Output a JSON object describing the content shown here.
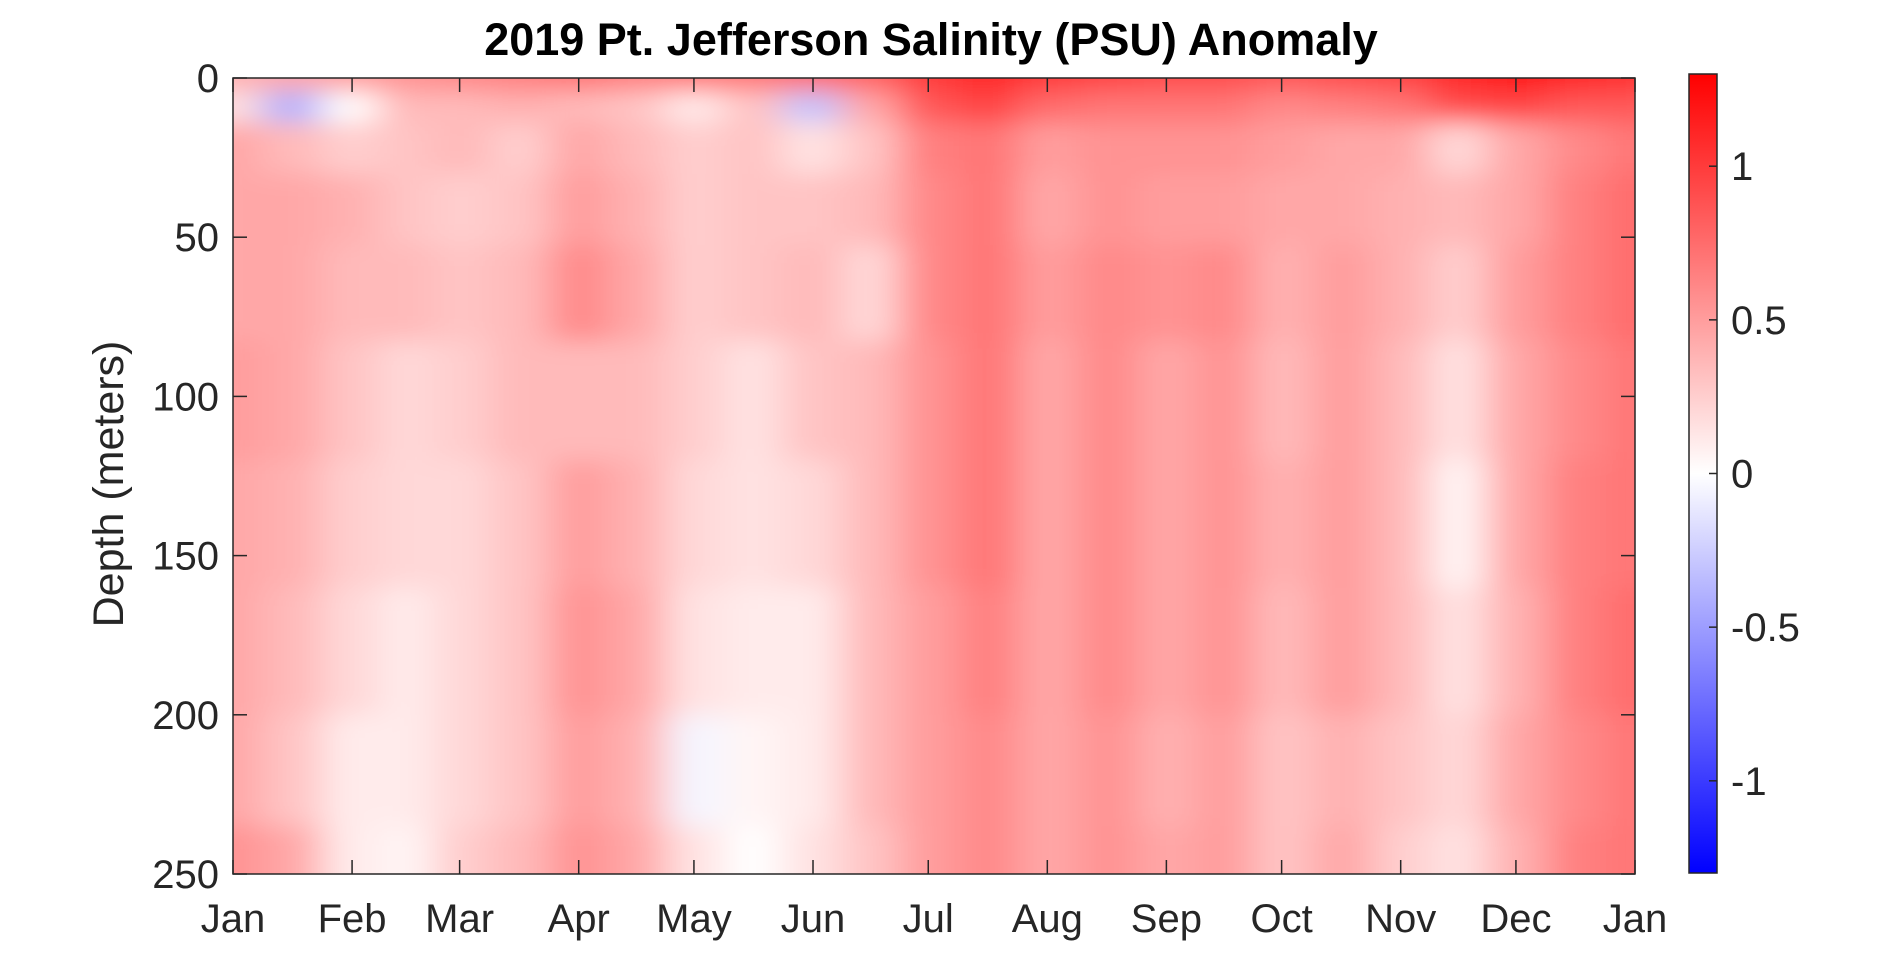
{
  "chart_data": {
    "type": "heatmap",
    "title": "2019 Pt. Jefferson Salinity (PSU) Anomaly",
    "xlabel": "",
    "ylabel": "Depth (meters)",
    "x_tick_labels": [
      "Jan",
      "Feb",
      "Mar",
      "Apr",
      "May",
      "Jun",
      "Jul",
      "Aug",
      "Sep",
      "Oct",
      "Nov",
      "Dec",
      "Jan"
    ],
    "x_tick_days": [
      0,
      31,
      59,
      90,
      120,
      151,
      181,
      212,
      243,
      273,
      304,
      334,
      365
    ],
    "xlim": [
      0,
      365
    ],
    "y_ticks": [
      0,
      50,
      100,
      150,
      200,
      250
    ],
    "y_tick_labels": [
      "0",
      "50",
      "100",
      "150",
      "200",
      "250"
    ],
    "ylim": [
      0,
      250
    ],
    "y_reversed": true,
    "colorbar": {
      "range": [
        -1.3,
        1.3
      ],
      "ticks": [
        -1,
        -0.5,
        0,
        0.5,
        1
      ],
      "tick_labels": [
        "-1",
        "-0.5",
        "0",
        "0.5",
        "1"
      ],
      "low_color": "#0000ff",
      "mid_color": "#ffffff",
      "high_color": "#ff0000"
    },
    "depths": [
      0,
      8,
      20,
      40,
      65,
      100,
      140,
      180,
      220,
      250
    ],
    "days": [
      0,
      15,
      31,
      45,
      59,
      75,
      90,
      105,
      120,
      135,
      151,
      166,
      181,
      197,
      212,
      228,
      243,
      258,
      273,
      289,
      304,
      319,
      334,
      350,
      365
    ],
    "values": [
      [
        0.4,
        0.45,
        0.5,
        0.55,
        0.6,
        0.65,
        0.7,
        0.65,
        0.7,
        0.7,
        0.75,
        0.8,
        1.0,
        1.1,
        1.0,
        0.95,
        0.9,
        0.9,
        0.85,
        0.9,
        0.95,
        1.1,
        1.2,
        1.1,
        1.05
      ],
      [
        0.15,
        -0.4,
        0.0,
        0.35,
        0.35,
        0.4,
        0.35,
        0.3,
        0.1,
        0.3,
        -0.3,
        0.45,
        0.85,
        0.95,
        0.75,
        0.7,
        0.7,
        0.7,
        0.6,
        0.65,
        0.7,
        0.9,
        0.95,
        0.85,
        0.85
      ],
      [
        0.45,
        0.35,
        0.25,
        0.3,
        0.35,
        0.25,
        0.45,
        0.35,
        0.25,
        0.3,
        0.15,
        0.3,
        0.65,
        0.7,
        0.5,
        0.55,
        0.55,
        0.55,
        0.5,
        0.45,
        0.45,
        0.2,
        0.45,
        0.6,
        0.7
      ],
      [
        0.45,
        0.45,
        0.4,
        0.3,
        0.25,
        0.3,
        0.5,
        0.4,
        0.25,
        0.3,
        0.3,
        0.35,
        0.6,
        0.7,
        0.45,
        0.55,
        0.5,
        0.5,
        0.45,
        0.45,
        0.4,
        0.35,
        0.45,
        0.65,
        0.75
      ],
      [
        0.45,
        0.45,
        0.35,
        0.35,
        0.3,
        0.35,
        0.6,
        0.45,
        0.25,
        0.3,
        0.35,
        0.2,
        0.6,
        0.7,
        0.5,
        0.6,
        0.55,
        0.6,
        0.4,
        0.5,
        0.4,
        0.25,
        0.5,
        0.65,
        0.75
      ],
      [
        0.5,
        0.45,
        0.3,
        0.2,
        0.25,
        0.35,
        0.35,
        0.35,
        0.25,
        0.15,
        0.3,
        0.35,
        0.55,
        0.7,
        0.45,
        0.6,
        0.45,
        0.55,
        0.35,
        0.5,
        0.35,
        0.15,
        0.45,
        0.6,
        0.7
      ],
      [
        0.45,
        0.4,
        0.25,
        0.2,
        0.2,
        0.3,
        0.5,
        0.4,
        0.2,
        0.15,
        0.2,
        0.35,
        0.55,
        0.7,
        0.45,
        0.6,
        0.45,
        0.55,
        0.4,
        0.5,
        0.35,
        0.05,
        0.45,
        0.65,
        0.7
      ],
      [
        0.45,
        0.35,
        0.2,
        0.1,
        0.2,
        0.3,
        0.55,
        0.45,
        0.15,
        0.1,
        0.1,
        0.35,
        0.5,
        0.65,
        0.45,
        0.6,
        0.45,
        0.55,
        0.35,
        0.5,
        0.35,
        0.15,
        0.4,
        0.65,
        0.75
      ],
      [
        0.45,
        0.3,
        0.1,
        0.1,
        0.2,
        0.3,
        0.5,
        0.4,
        -0.05,
        0.05,
        0.1,
        0.35,
        0.5,
        0.6,
        0.45,
        0.55,
        0.4,
        0.5,
        0.3,
        0.4,
        0.3,
        0.2,
        0.45,
        0.6,
        0.7
      ],
      [
        0.55,
        0.45,
        0.1,
        0.05,
        0.25,
        0.35,
        0.55,
        0.45,
        0.15,
        0.0,
        0.15,
        0.3,
        0.5,
        0.6,
        0.45,
        0.55,
        0.45,
        0.5,
        0.3,
        0.45,
        0.25,
        0.15,
        0.4,
        0.65,
        0.7
      ]
    ]
  }
}
